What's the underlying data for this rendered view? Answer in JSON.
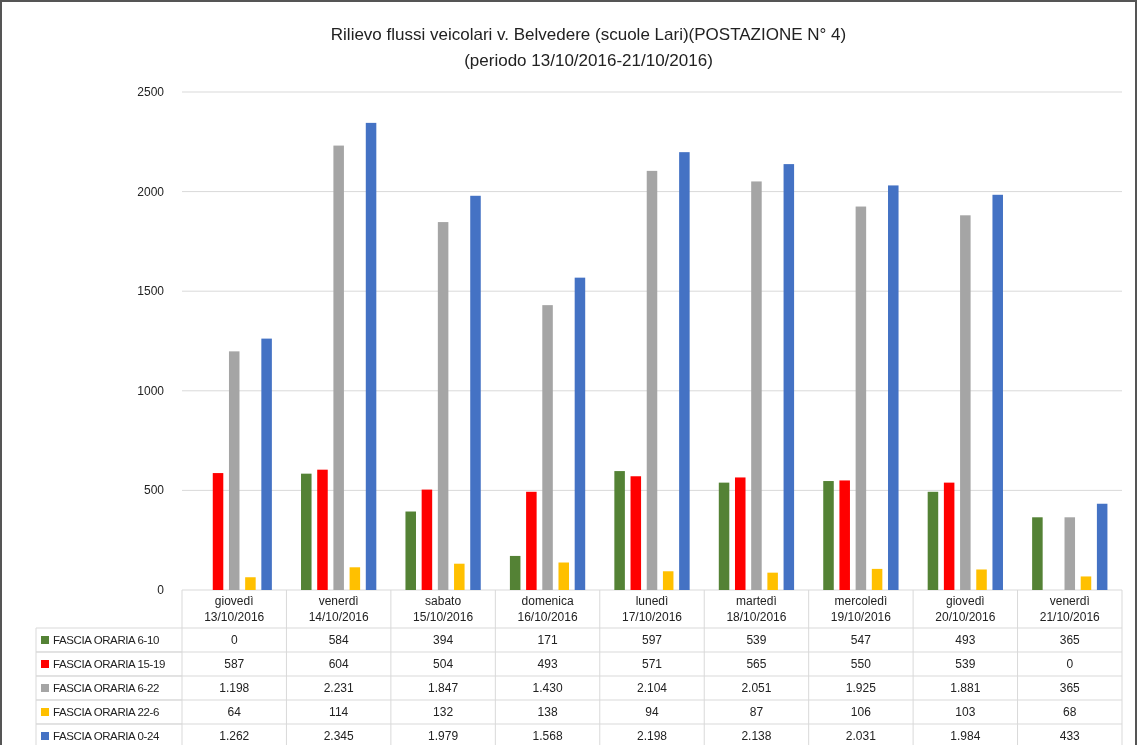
{
  "chart_data": {
    "type": "bar",
    "title": "Rilievo flussi veicolari v. Belvedere (scuole Lari)(POSTAZIONE N° 4)",
    "subtitle": "(periodo 13/10/2016-21/10/2016)",
    "categories": [
      "giovedì\n13/10/2016",
      "venerdì\n14/10/2016",
      "sabato\n15/10/2016",
      "domenica\n16/10/2016",
      "lunedì\n17/10/2016",
      "martedì\n18/10/2016",
      "mercoledì\n19/10/2016",
      "giovedì\n20/10/2016",
      "venerdì\n21/10/2016"
    ],
    "series": [
      {
        "name": "FASCIA ORARIA 6-10",
        "color": "#548235",
        "values": [
          0,
          584,
          394,
          171,
          597,
          539,
          547,
          493,
          365
        ],
        "value_labels": [
          "0",
          "584",
          "394",
          "171",
          "597",
          "539",
          "547",
          "493",
          "365"
        ]
      },
      {
        "name": "FASCIA ORARIA 15-19",
        "color": "#ff0000",
        "values": [
          587,
          604,
          504,
          493,
          571,
          565,
          550,
          539,
          0
        ],
        "value_labels": [
          "587",
          "604",
          "504",
          "493",
          "571",
          "565",
          "550",
          "539",
          "0"
        ]
      },
      {
        "name": "FASCIA ORARIA 6-22",
        "color": "#a5a5a5",
        "values": [
          1198,
          2231,
          1847,
          1430,
          2104,
          2051,
          1925,
          1881,
          365
        ],
        "value_labels": [
          "1.198",
          "2.231",
          "1.847",
          "1.430",
          "2.104",
          "2.051",
          "1.925",
          "1.881",
          "365"
        ]
      },
      {
        "name": "FASCIA ORARIA 22-6",
        "color": "#ffc000",
        "values": [
          64,
          114,
          132,
          138,
          94,
          87,
          106,
          103,
          68
        ],
        "value_labels": [
          "64",
          "114",
          "132",
          "138",
          "94",
          "87",
          "106",
          "103",
          "68"
        ]
      },
      {
        "name": "FASCIA ORARIA 0-24",
        "color": "#4472c4",
        "values": [
          1262,
          2345,
          1979,
          1568,
          2198,
          2138,
          2031,
          1984,
          433
        ],
        "value_labels": [
          "1.262",
          "2.345",
          "1.979",
          "1.568",
          "2.198",
          "2.138",
          "2.031",
          "1.984",
          "433"
        ]
      }
    ],
    "ylim": [
      0,
      2500
    ],
    "yticks": [
      0,
      500,
      1000,
      1500,
      2000,
      2500
    ],
    "grid": "y",
    "legend": "bottom"
  }
}
